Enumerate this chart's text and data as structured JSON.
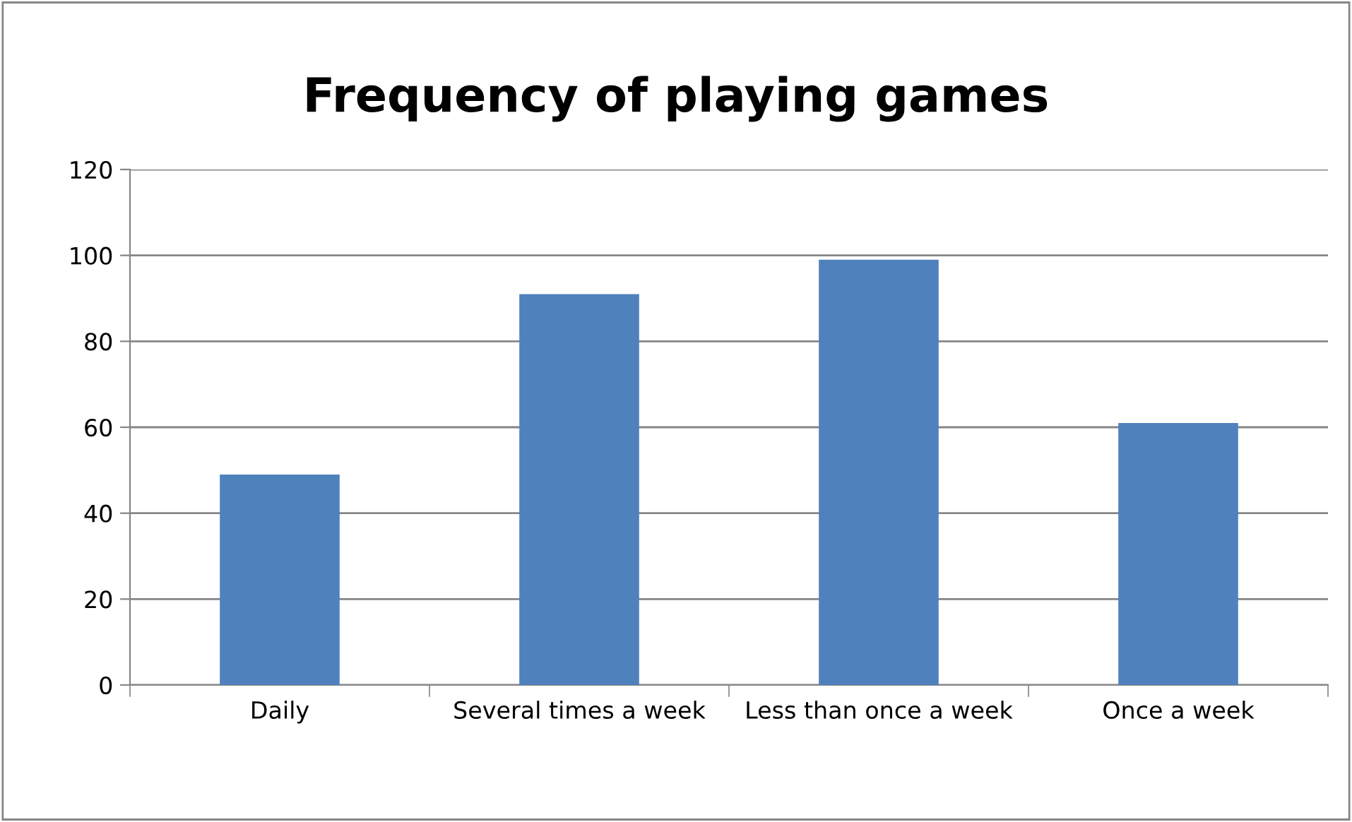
{
  "chart_data": {
    "type": "bar",
    "title": "Frequency of playing games",
    "categories": [
      "Daily",
      "Several times a week",
      "Less than once a week",
      "Once a week"
    ],
    "values": [
      49,
      91,
      99,
      61
    ],
    "color": "#4f81bd",
    "ylim": [
      0,
      120
    ],
    "yticks": [
      0,
      20,
      40,
      60,
      80,
      100,
      120
    ],
    "grid": "y",
    "legend": false
  }
}
